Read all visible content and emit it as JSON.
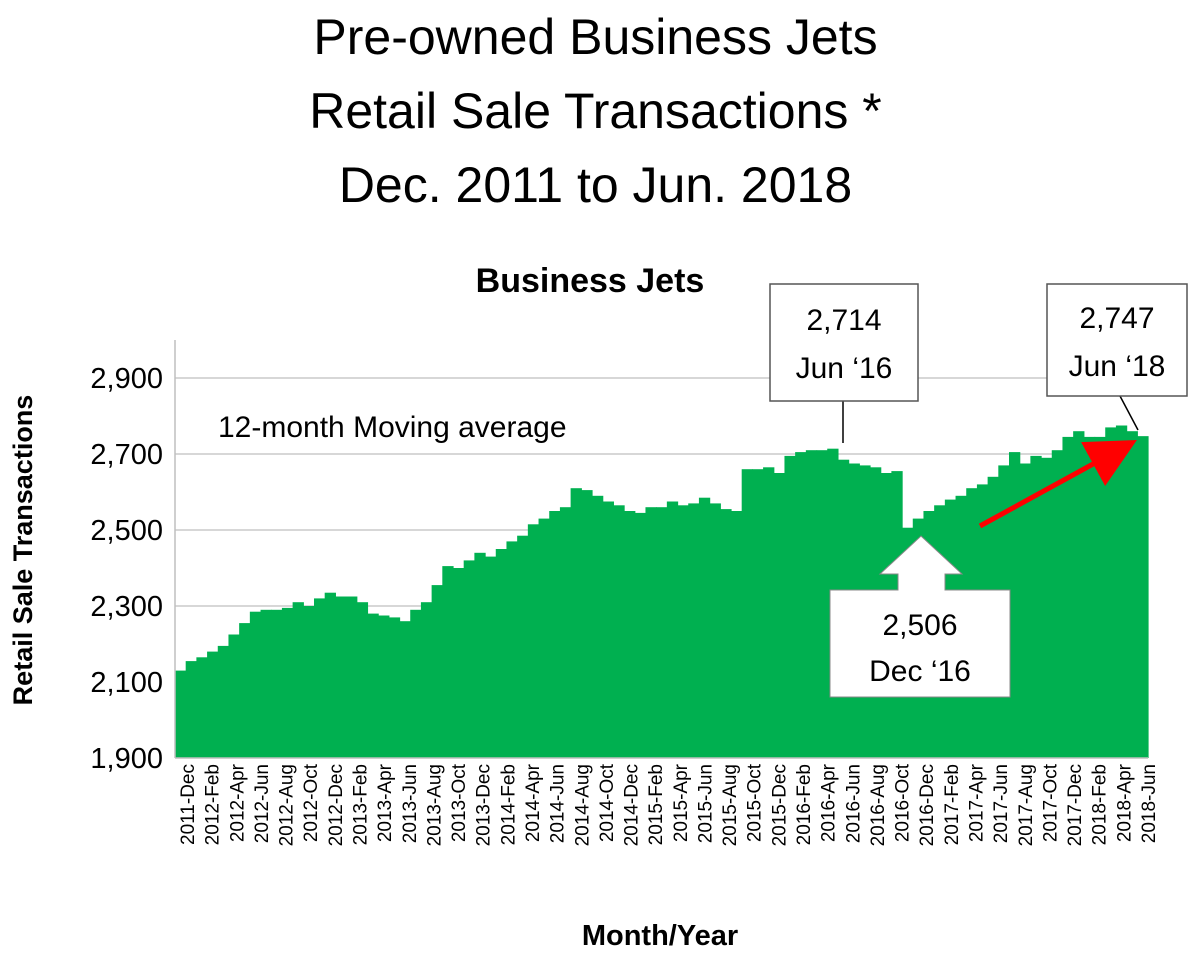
{
  "title_lines": [
    "Pre-owned Business Jets",
    "Retail Sale Transactions *",
    "Dec. 2011 to Jun. 2018"
  ],
  "chart_data": {
    "type": "area",
    "title": "Business Jets",
    "xlabel": "Month/Year",
    "ylabel": "Retail Sale Transactions",
    "ylim": [
      1900,
      3000
    ],
    "yticks": [
      1900,
      2100,
      2300,
      2500,
      2700,
      2900
    ],
    "ytick_labels": [
      "1,900",
      "2,100",
      "2,300",
      "2,500",
      "2,700",
      "2,900"
    ],
    "grid": true,
    "fill_color": "#00b050",
    "x_tick_labels": [
      "2011-Dec",
      "2012-Feb",
      "2012-Apr",
      "2012-Jun",
      "2012-Aug",
      "2012-Oct",
      "2012-Dec",
      "2013-Feb",
      "2013-Apr",
      "2013-Jun",
      "2013-Aug",
      "2013-Oct",
      "2013-Dec",
      "2014-Feb",
      "2014-Apr",
      "2014-Jun",
      "2014-Aug",
      "2014-Oct",
      "2014-Dec",
      "2015-Feb",
      "2015-Apr",
      "2015-Jun",
      "2015-Aug",
      "2015-Oct",
      "2015-Dec",
      "2016-Feb",
      "2016-Apr",
      "2016-Jun",
      "2016-Aug",
      "2016-Oct",
      "2016-Dec",
      "2017-Feb",
      "2017-Apr",
      "2017-Jun",
      "2017-Aug",
      "2017-Oct",
      "2017-Dec",
      "2018-Feb",
      "2018-Apr",
      "2018-Jun"
    ],
    "series": [
      {
        "values": [
          2130,
          2155,
          2165,
          2180,
          2195,
          2225,
          2255,
          2285,
          2290,
          2290,
          2295,
          2310,
          2300,
          2320,
          2335,
          2325,
          2325,
          2310,
          2280,
          2275,
          2270,
          2260,
          2290,
          2310,
          2355,
          2405,
          2400,
          2420,
          2440,
          2430,
          2450,
          2470,
          2485,
          2515,
          2530,
          2550,
          2560,
          2610,
          2605,
          2590,
          2575,
          2565,
          2550,
          2545,
          2560,
          2560,
          2575,
          2565,
          2570,
          2585,
          2570,
          2555,
          2550,
          2660,
          2660,
          2665,
          2650,
          2695,
          2705,
          2710,
          2710,
          2714,
          2685,
          2675,
          2670,
          2665,
          2650,
          2655,
          2506,
          2530,
          2550,
          2565,
          2580,
          2590,
          2610,
          2620,
          2640,
          2670,
          2705,
          2675,
          2695,
          2690,
          2710,
          2745,
          2760,
          2745,
          2745,
          2770,
          2775,
          2760,
          2747
        ]
      }
    ],
    "annotations": {
      "moving_average": "12-month Moving average",
      "callout_jun16": {
        "value": "2,714",
        "date": "Jun ‘16"
      },
      "callout_jun18": {
        "value": "2,747",
        "date": "Jun ‘18"
      },
      "callout_dec16": {
        "value": "2,506",
        "date": "Dec ‘16"
      }
    }
  }
}
